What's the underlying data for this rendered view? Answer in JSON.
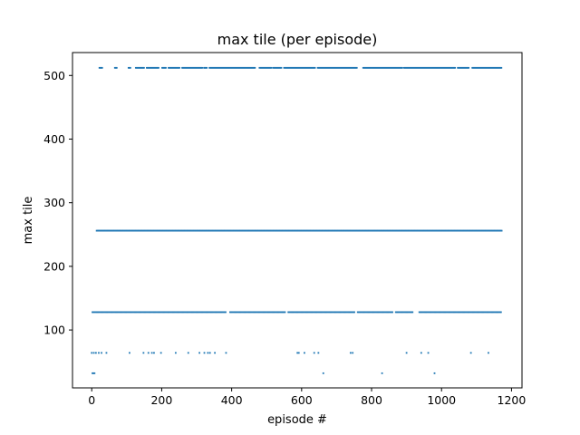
{
  "chart_data": {
    "type": "scatter",
    "title": "max tile (per episode)",
    "xlabel": "episode #",
    "ylabel": "max tile",
    "xlim": [
      -55,
      1230
    ],
    "ylim": [
      9,
      536
    ],
    "xticks": [
      0,
      200,
      400,
      600,
      800,
      1000,
      1200
    ],
    "yticks": [
      100,
      200,
      300,
      400,
      500
    ],
    "xtick_labels": [
      "0",
      "200",
      "400",
      "600",
      "800",
      "1000",
      "1200"
    ],
    "ytick_labels": [
      "100",
      "200",
      "300",
      "400",
      "500"
    ],
    "marker_color": "#1f77b4",
    "grid": false,
    "series": [
      {
        "y": 32,
        "x": [
          2,
          5,
          8,
          662,
          830,
          980
        ]
      },
      {
        "y": 64,
        "x": [
          0,
          6,
          12,
          20,
          28,
          42,
          108,
          148,
          162,
          172,
          178,
          198,
          240,
          276,
          308,
          322,
          332,
          338,
          352,
          384,
          588,
          592,
          608,
          636,
          648,
          740,
          746,
          900,
          942,
          962,
          1084,
          1134
        ]
      },
      {
        "y": 128,
        "x_range": [
          2,
          1172
        ],
        "step": 3.2,
        "gaps": [
          [
            385,
            395
          ],
          [
            553,
            560
          ],
          [
            752,
            760
          ],
          [
            862,
            868
          ],
          [
            920,
            935
          ]
        ]
      },
      {
        "y": 256,
        "x_range": [
          14,
          1172
        ],
        "step": 2
      },
      {
        "y": 512,
        "x_range": [
          22,
          1172
        ],
        "step": 2.6,
        "gaps": [
          [
            30,
            64
          ],
          [
            74,
            104
          ],
          [
            112,
            124
          ],
          [
            150,
            155
          ],
          [
            192,
            200
          ],
          [
            214,
            218
          ],
          [
            252,
            258
          ],
          [
            316,
            320
          ],
          [
            330,
            334
          ],
          [
            468,
            478
          ],
          [
            514,
            518
          ],
          [
            544,
            548
          ],
          [
            640,
            645
          ],
          [
            760,
            775
          ],
          [
            888,
            892
          ],
          [
            1040,
            1046
          ],
          [
            1080,
            1086
          ]
        ]
      }
    ]
  }
}
